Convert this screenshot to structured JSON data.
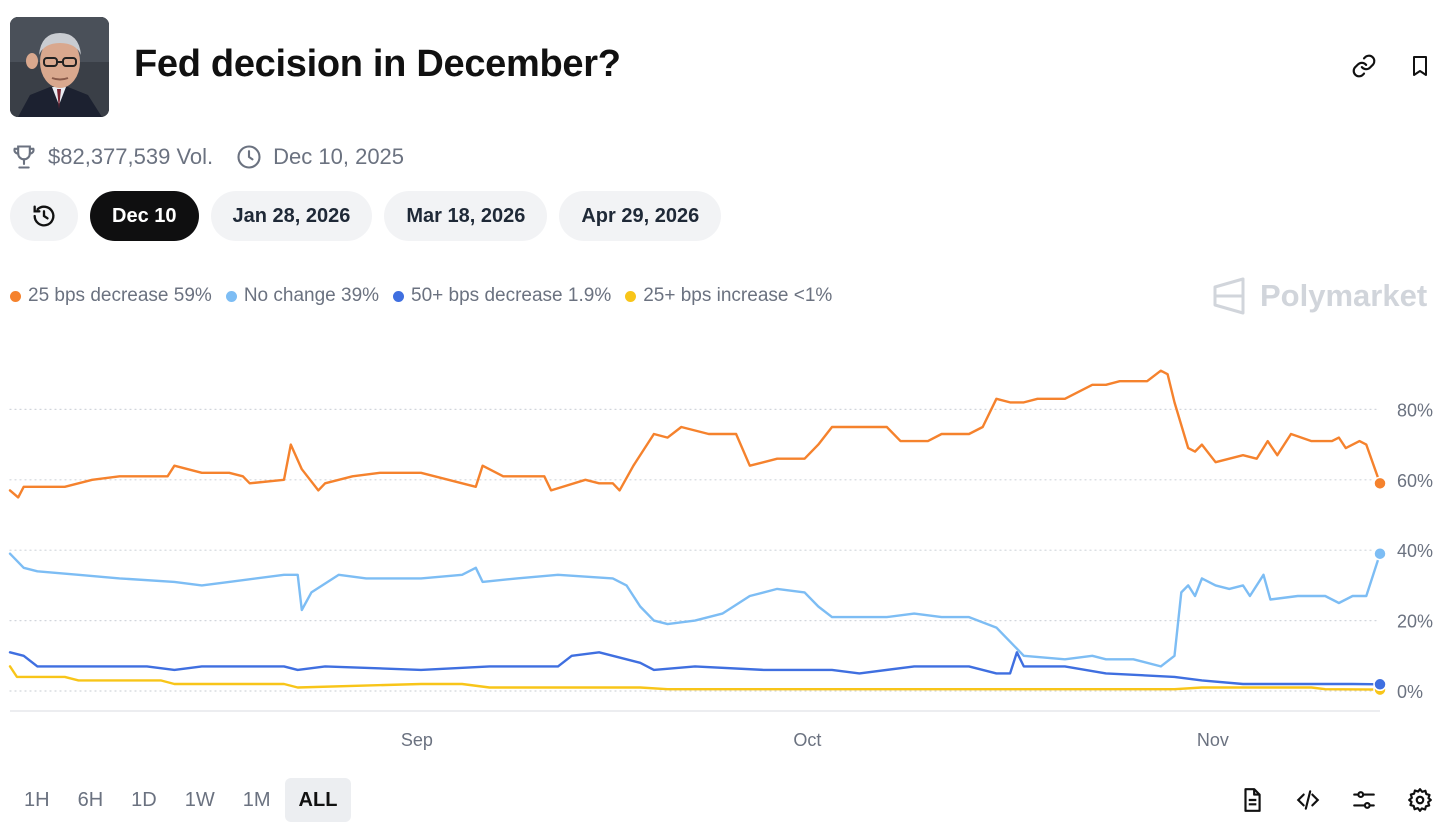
{
  "header": {
    "title": "Fed decision in December?"
  },
  "meta": {
    "volume": "$82,377,539 Vol.",
    "date": "Dec 10, 2025"
  },
  "date_tabs": [
    "Dec 10",
    "Jan 28, 2026",
    "Mar 18, 2026",
    "Apr 29, 2026"
  ],
  "brand": "Polymarket",
  "time_ranges": [
    "1H",
    "6H",
    "1D",
    "1W",
    "1M",
    "ALL"
  ],
  "colors": {
    "orange": "#F5822D",
    "light_blue": "#7DBDF4",
    "blue": "#3F6FE0",
    "yellow": "#F8C519"
  },
  "chart_data": {
    "type": "line",
    "title": "",
    "ylim": [
      0,
      100
    ],
    "yticks": [
      "0%",
      "20%",
      "40%",
      "60%",
      "80%"
    ],
    "x_tick_labels": [
      {
        "label": "Sep",
        "t": 0.297
      },
      {
        "label": "Oct",
        "t": 0.582
      },
      {
        "label": "Nov",
        "t": 0.878
      }
    ],
    "series": [
      {
        "name": "25 bps decrease",
        "label": "59%",
        "color": "#F5822D",
        "points": [
          [
            0,
            57
          ],
          [
            0.006,
            55
          ],
          [
            0.01,
            58
          ],
          [
            0.04,
            58
          ],
          [
            0.06,
            60
          ],
          [
            0.08,
            61
          ],
          [
            0.1,
            61
          ],
          [
            0.115,
            61
          ],
          [
            0.12,
            64
          ],
          [
            0.14,
            62
          ],
          [
            0.16,
            62
          ],
          [
            0.17,
            61
          ],
          [
            0.175,
            59
          ],
          [
            0.2,
            60
          ],
          [
            0.205,
            70
          ],
          [
            0.213,
            63
          ],
          [
            0.225,
            57
          ],
          [
            0.23,
            59
          ],
          [
            0.25,
            61
          ],
          [
            0.27,
            62
          ],
          [
            0.3,
            62
          ],
          [
            0.32,
            60
          ],
          [
            0.34,
            58
          ],
          [
            0.345,
            64
          ],
          [
            0.36,
            61
          ],
          [
            0.39,
            61
          ],
          [
            0.395,
            57
          ],
          [
            0.42,
            60
          ],
          [
            0.43,
            59
          ],
          [
            0.44,
            59
          ],
          [
            0.445,
            57
          ],
          [
            0.455,
            64
          ],
          [
            0.47,
            73
          ],
          [
            0.48,
            72
          ],
          [
            0.49,
            75
          ],
          [
            0.51,
            73
          ],
          [
            0.53,
            73
          ],
          [
            0.54,
            64
          ],
          [
            0.56,
            66
          ],
          [
            0.58,
            66
          ],
          [
            0.59,
            70
          ],
          [
            0.6,
            75
          ],
          [
            0.64,
            75
          ],
          [
            0.65,
            71
          ],
          [
            0.67,
            71
          ],
          [
            0.68,
            73
          ],
          [
            0.7,
            73
          ],
          [
            0.71,
            75
          ],
          [
            0.72,
            83
          ],
          [
            0.73,
            82
          ],
          [
            0.74,
            82
          ],
          [
            0.75,
            83
          ],
          [
            0.77,
            83
          ],
          [
            0.79,
            87
          ],
          [
            0.8,
            87
          ],
          [
            0.81,
            88
          ],
          [
            0.83,
            88
          ],
          [
            0.84,
            91
          ],
          [
            0.845,
            90
          ],
          [
            0.85,
            82
          ],
          [
            0.86,
            69
          ],
          [
            0.865,
            68
          ],
          [
            0.87,
            70
          ],
          [
            0.88,
            65
          ],
          [
            0.89,
            66
          ],
          [
            0.9,
            67
          ],
          [
            0.91,
            66
          ],
          [
            0.918,
            71
          ],
          [
            0.925,
            67
          ],
          [
            0.935,
            73
          ],
          [
            0.95,
            71
          ],
          [
            0.965,
            71
          ],
          [
            0.97,
            72
          ],
          [
            0.975,
            69
          ],
          [
            0.985,
            71
          ],
          [
            0.99,
            70
          ],
          [
            1,
            59
          ]
        ]
      },
      {
        "name": "No change",
        "label": "39%",
        "color": "#7DBDF4",
        "points": [
          [
            0,
            39
          ],
          [
            0.01,
            35
          ],
          [
            0.02,
            34
          ],
          [
            0.05,
            33
          ],
          [
            0.08,
            32
          ],
          [
            0.12,
            31
          ],
          [
            0.14,
            30
          ],
          [
            0.16,
            31
          ],
          [
            0.2,
            33
          ],
          [
            0.21,
            33
          ],
          [
            0.213,
            23
          ],
          [
            0.22,
            28
          ],
          [
            0.24,
            33
          ],
          [
            0.26,
            32
          ],
          [
            0.3,
            32
          ],
          [
            0.33,
            33
          ],
          [
            0.34,
            35
          ],
          [
            0.345,
            31
          ],
          [
            0.37,
            32
          ],
          [
            0.4,
            33
          ],
          [
            0.44,
            32
          ],
          [
            0.45,
            30
          ],
          [
            0.46,
            24
          ],
          [
            0.47,
            20
          ],
          [
            0.48,
            19
          ],
          [
            0.5,
            20
          ],
          [
            0.52,
            22
          ],
          [
            0.54,
            27
          ],
          [
            0.56,
            29
          ],
          [
            0.58,
            28
          ],
          [
            0.59,
            24
          ],
          [
            0.6,
            21
          ],
          [
            0.64,
            21
          ],
          [
            0.66,
            22
          ],
          [
            0.68,
            21
          ],
          [
            0.7,
            21
          ],
          [
            0.72,
            18
          ],
          [
            0.73,
            14
          ],
          [
            0.74,
            10
          ],
          [
            0.77,
            9
          ],
          [
            0.79,
            10
          ],
          [
            0.8,
            9
          ],
          [
            0.82,
            9
          ],
          [
            0.84,
            7
          ],
          [
            0.85,
            10
          ],
          [
            0.855,
            28
          ],
          [
            0.86,
            30
          ],
          [
            0.865,
            27
          ],
          [
            0.87,
            32
          ],
          [
            0.88,
            30
          ],
          [
            0.89,
            29
          ],
          [
            0.9,
            30
          ],
          [
            0.905,
            27
          ],
          [
            0.915,
            33
          ],
          [
            0.92,
            26
          ],
          [
            0.94,
            27
          ],
          [
            0.96,
            27
          ],
          [
            0.97,
            25
          ],
          [
            0.98,
            27
          ],
          [
            0.99,
            27
          ],
          [
            1,
            39
          ]
        ]
      },
      {
        "name": "50+ bps decrease",
        "label": "1.9%",
        "color": "#3F6FE0",
        "points": [
          [
            0,
            11
          ],
          [
            0.01,
            10
          ],
          [
            0.02,
            7
          ],
          [
            0.1,
            7
          ],
          [
            0.12,
            6
          ],
          [
            0.14,
            7
          ],
          [
            0.2,
            7
          ],
          [
            0.21,
            6
          ],
          [
            0.23,
            7
          ],
          [
            0.3,
            6
          ],
          [
            0.35,
            7
          ],
          [
            0.4,
            7
          ],
          [
            0.41,
            10
          ],
          [
            0.43,
            11
          ],
          [
            0.45,
            9
          ],
          [
            0.46,
            8
          ],
          [
            0.47,
            6
          ],
          [
            0.5,
            7
          ],
          [
            0.55,
            6
          ],
          [
            0.6,
            6
          ],
          [
            0.62,
            5
          ],
          [
            0.66,
            7
          ],
          [
            0.7,
            7
          ],
          [
            0.72,
            5
          ],
          [
            0.73,
            5
          ],
          [
            0.735,
            11
          ],
          [
            0.74,
            7
          ],
          [
            0.77,
            7
          ],
          [
            0.8,
            5
          ],
          [
            0.85,
            4
          ],
          [
            0.87,
            3
          ],
          [
            0.9,
            2
          ],
          [
            0.95,
            2
          ],
          [
            0.98,
            2
          ],
          [
            1,
            1.9
          ]
        ]
      },
      {
        "name": "25+ bps increase",
        "label": "<1%",
        "color": "#F8C519",
        "points": [
          [
            0,
            7
          ],
          [
            0.005,
            4
          ],
          [
            0.02,
            4
          ],
          [
            0.04,
            4
          ],
          [
            0.05,
            3
          ],
          [
            0.11,
            3
          ],
          [
            0.12,
            2
          ],
          [
            0.14,
            2
          ],
          [
            0.2,
            2
          ],
          [
            0.21,
            1
          ],
          [
            0.3,
            2
          ],
          [
            0.33,
            2
          ],
          [
            0.35,
            1
          ],
          [
            0.38,
            1
          ],
          [
            0.45,
            1
          ],
          [
            0.46,
            1
          ],
          [
            0.48,
            0.5
          ],
          [
            0.6,
            0.5
          ],
          [
            0.85,
            0.5
          ],
          [
            0.87,
            1
          ],
          [
            0.95,
            1
          ],
          [
            0.96,
            0.5
          ],
          [
            1,
            0.4
          ]
        ]
      }
    ]
  }
}
